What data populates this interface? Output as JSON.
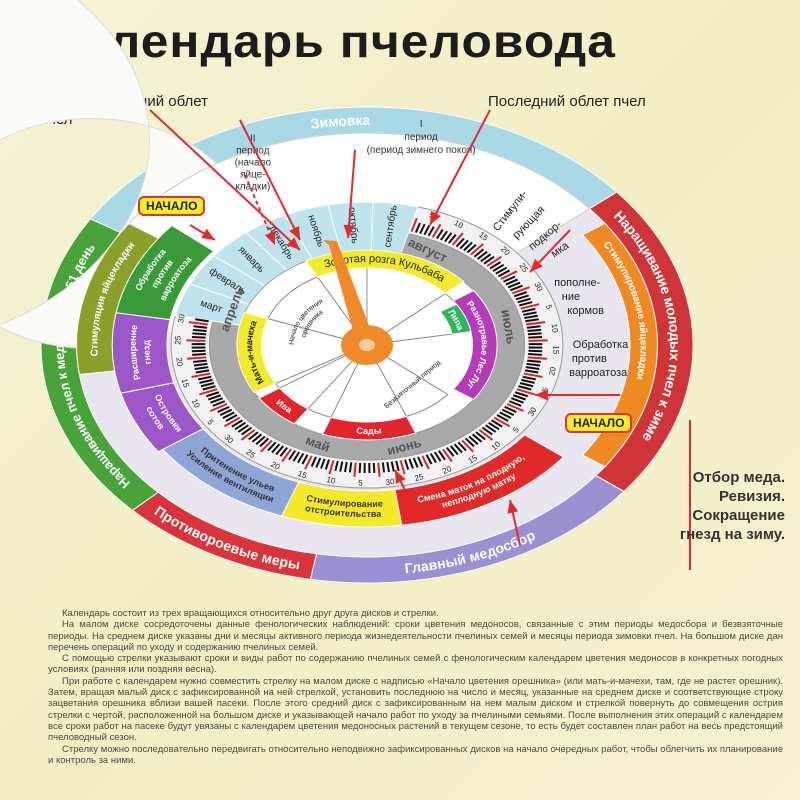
{
  "title": "Календарь пчеловода",
  "callouts": {
    "first_flight": "Первый весенний облет пчел",
    "last_flight": "Последний облет пчел",
    "start_left": "НАЧАЛО",
    "start_right": "НАЧАЛО",
    "honey_harvest": "Отбор меда. Ревизия. Сокращение гнезд на зиму."
  },
  "wintering": {
    "label": "Зимовка",
    "period2": [
      "II",
      "период",
      "(начало",
      "яйце-",
      "кладки)"
    ],
    "period1": [
      "I",
      "период",
      "(период зимнего покоя)"
    ]
  },
  "outer_bands": [
    {
      "label": "Зимовка",
      "color": "#a8d9e4"
    },
    {
      "label": "Наращивание молодых пчел к зиме",
      "color": "#cf3439"
    },
    {
      "label": "Главный медосбор",
      "color": "#9a90d2"
    },
    {
      "label": "Противороевые меры",
      "color": "#d9333b"
    },
    {
      "label": "Наращивание пчел к медосбору - 51 день",
      "color": "#47a33a"
    }
  ],
  "inner_bands": [
    {
      "label": "Стимулирование яйцекладки",
      "color": "#ef8a22"
    },
    {
      "label": "Смена маток на плодную, неплодную матку",
      "color": "#e02a2a"
    },
    {
      "label": "Стимулирование отстроительства",
      "color": "#f4ea2a"
    },
    {
      "label": "Притенение ульев Усиление вентиляции",
      "color": "#8ea6d6"
    },
    {
      "label": "Островки сотов",
      "color": "#9b57c8"
    },
    {
      "label": "Расширение гнезд",
      "color": "#9b57c8"
    },
    {
      "label": "Обработка против варроатоза",
      "color": "#3a9a3a"
    },
    {
      "label": "Стимуляция яйцекладки",
      "color": "#8aa02a"
    }
  ],
  "work_notes": [
    [
      "Стимули-",
      "рующая",
      "подкор-",
      "мка"
    ],
    [
      "пополне-",
      "ние",
      "кормов"
    ],
    [
      "Обработка",
      "против",
      "варроатоза"
    ]
  ],
  "months_winter": [
    "март",
    "февраль",
    "январь",
    "декабрь",
    "ноябрь",
    "октябрь",
    "сентябрь"
  ],
  "months_active": [
    "апрель",
    "май",
    "июнь",
    "июль",
    "август"
  ],
  "day_labels": [
    "5",
    "10",
    "15",
    "20",
    "25",
    "30"
  ],
  "small_disc": [
    {
      "label": "Золотая розга Кульбаба",
      "color": "#f1ec2e"
    },
    {
      "label": "Разнотравье Лес Луг",
      "color": "#b53bb8"
    },
    {
      "label": "Сады",
      "color": "#e0262c"
    },
    {
      "label": "Ива",
      "color": "#e0262c"
    },
    {
      "label": "Мать-и-мачеха",
      "color": "#f1ec2e"
    },
    {
      "label": "Липа",
      "color": "#2fb55a"
    }
  ],
  "small_disc_notes": [
    "Безвзяточный период",
    "Начало цветения орешника"
  ],
  "colors": {
    "pointer": "#f08a2a",
    "month_ring": "#a9a9a9",
    "winter_ring": "#bfe4ee",
    "arrow": "#e12b2b"
  },
  "description": [
    "Календарь состоит из трех вращающихся относительно друг друга дисков и стрелки.",
    "На малом диске сосредоточены данные фенологических наблюдений: сроки цветения медоносов, связанные с этим периоды медосбора и безвзяточные периоды. На среднем диске указаны дни и месяцы активного периода жизнедеятельности пчелиных семей и месяцы периода зимовки пчел. На большом диске дан перечень операций по уходу и содержанию пчелиных семей.",
    "С помощью стрелки указывают сроки и виды работ по содержанию пчелиных семей с фенологическим календарем цветения медоносов в конкретных погодных условиях (ранняя или поздняя весна).",
    "При работе с календарем нужно совместить стрелку на малом диске с надписью «Начало цветения орешника» (или мать-и-мачехи, там, где не растет орешник). Затем, вращая малый диск с зафиксированной на ней стрелкой, установить последнюю на число и месяц, указанные на среднем диске и соответствующие строку зацветания орешника вблизи вашей пасеки. После этого средний диск с зафиксированным на нем малым диском и стрелкой повернуть до совмещения острия стрелки с чертой, расположенной на большом диске и указывающей начало работ по уходу за пчелиными семьями. После выполнения этих операций с календарем все сроки работ на пасеке будут увязаны с календарем цветения медоносных растений в текущем сезоне, то есть будет составлен план работ на весь предстоящий пчеловодный сезон.",
    "Стрелку можно последовательно передвигать относительно неподвижно зафиксированных дисков на начало очередных работ, чтобы облегчить их планирование и контроль за ними."
  ]
}
